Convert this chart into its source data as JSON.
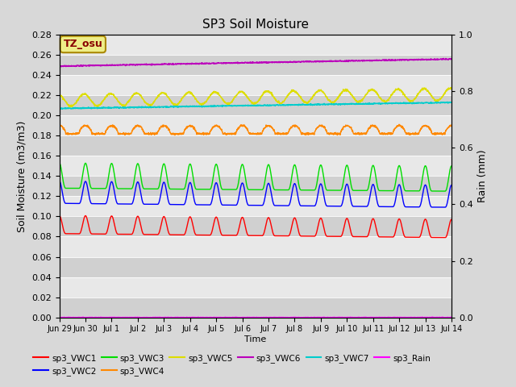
{
  "title": "SP3 Soil Moisture",
  "xlabel": "Time",
  "ylabel_left": "Soil Moisture (m3/m3)",
  "ylabel_right": "Rain (mm)",
  "tz_label": "TZ_osu",
  "ylim_left": [
    0.0,
    0.28
  ],
  "ylim_right": [
    0.0,
    1.0
  ],
  "x_ticks_labels": [
    "Jun 29",
    "Jun 30",
    "Jul 1",
    "Jul 2",
    "Jul 3",
    "Jul 4",
    "Jul 5",
    "Jul 6",
    "Jul 7",
    "Jul 8",
    "Jul 9",
    "Jul 10",
    "Jul 11",
    "Jul 12",
    "Jul 13",
    "Jul 14"
  ],
  "background_color": "#d8d8d8",
  "plot_bg_color": "#e8e8e8",
  "band_colors": [
    "#d0d0d0",
    "#e8e8e8"
  ],
  "series": {
    "sp3_VWC1": {
      "color": "#ff0000"
    },
    "sp3_VWC2": {
      "color": "#0000ff"
    },
    "sp3_VWC3": {
      "color": "#00dd00"
    },
    "sp3_VWC4": {
      "color": "#ff8800"
    },
    "sp3_VWC5": {
      "color": "#dddd00"
    },
    "sp3_VWC6": {
      "color": "#bb00bb"
    },
    "sp3_VWC7": {
      "color": "#00cccc"
    },
    "sp3_Rain": {
      "color": "#ff00ff"
    }
  },
  "legend_order": [
    "sp3_VWC1",
    "sp3_VWC2",
    "sp3_VWC3",
    "sp3_VWC4",
    "sp3_VWC5",
    "sp3_VWC6",
    "sp3_VWC7",
    "sp3_Rain"
  ]
}
